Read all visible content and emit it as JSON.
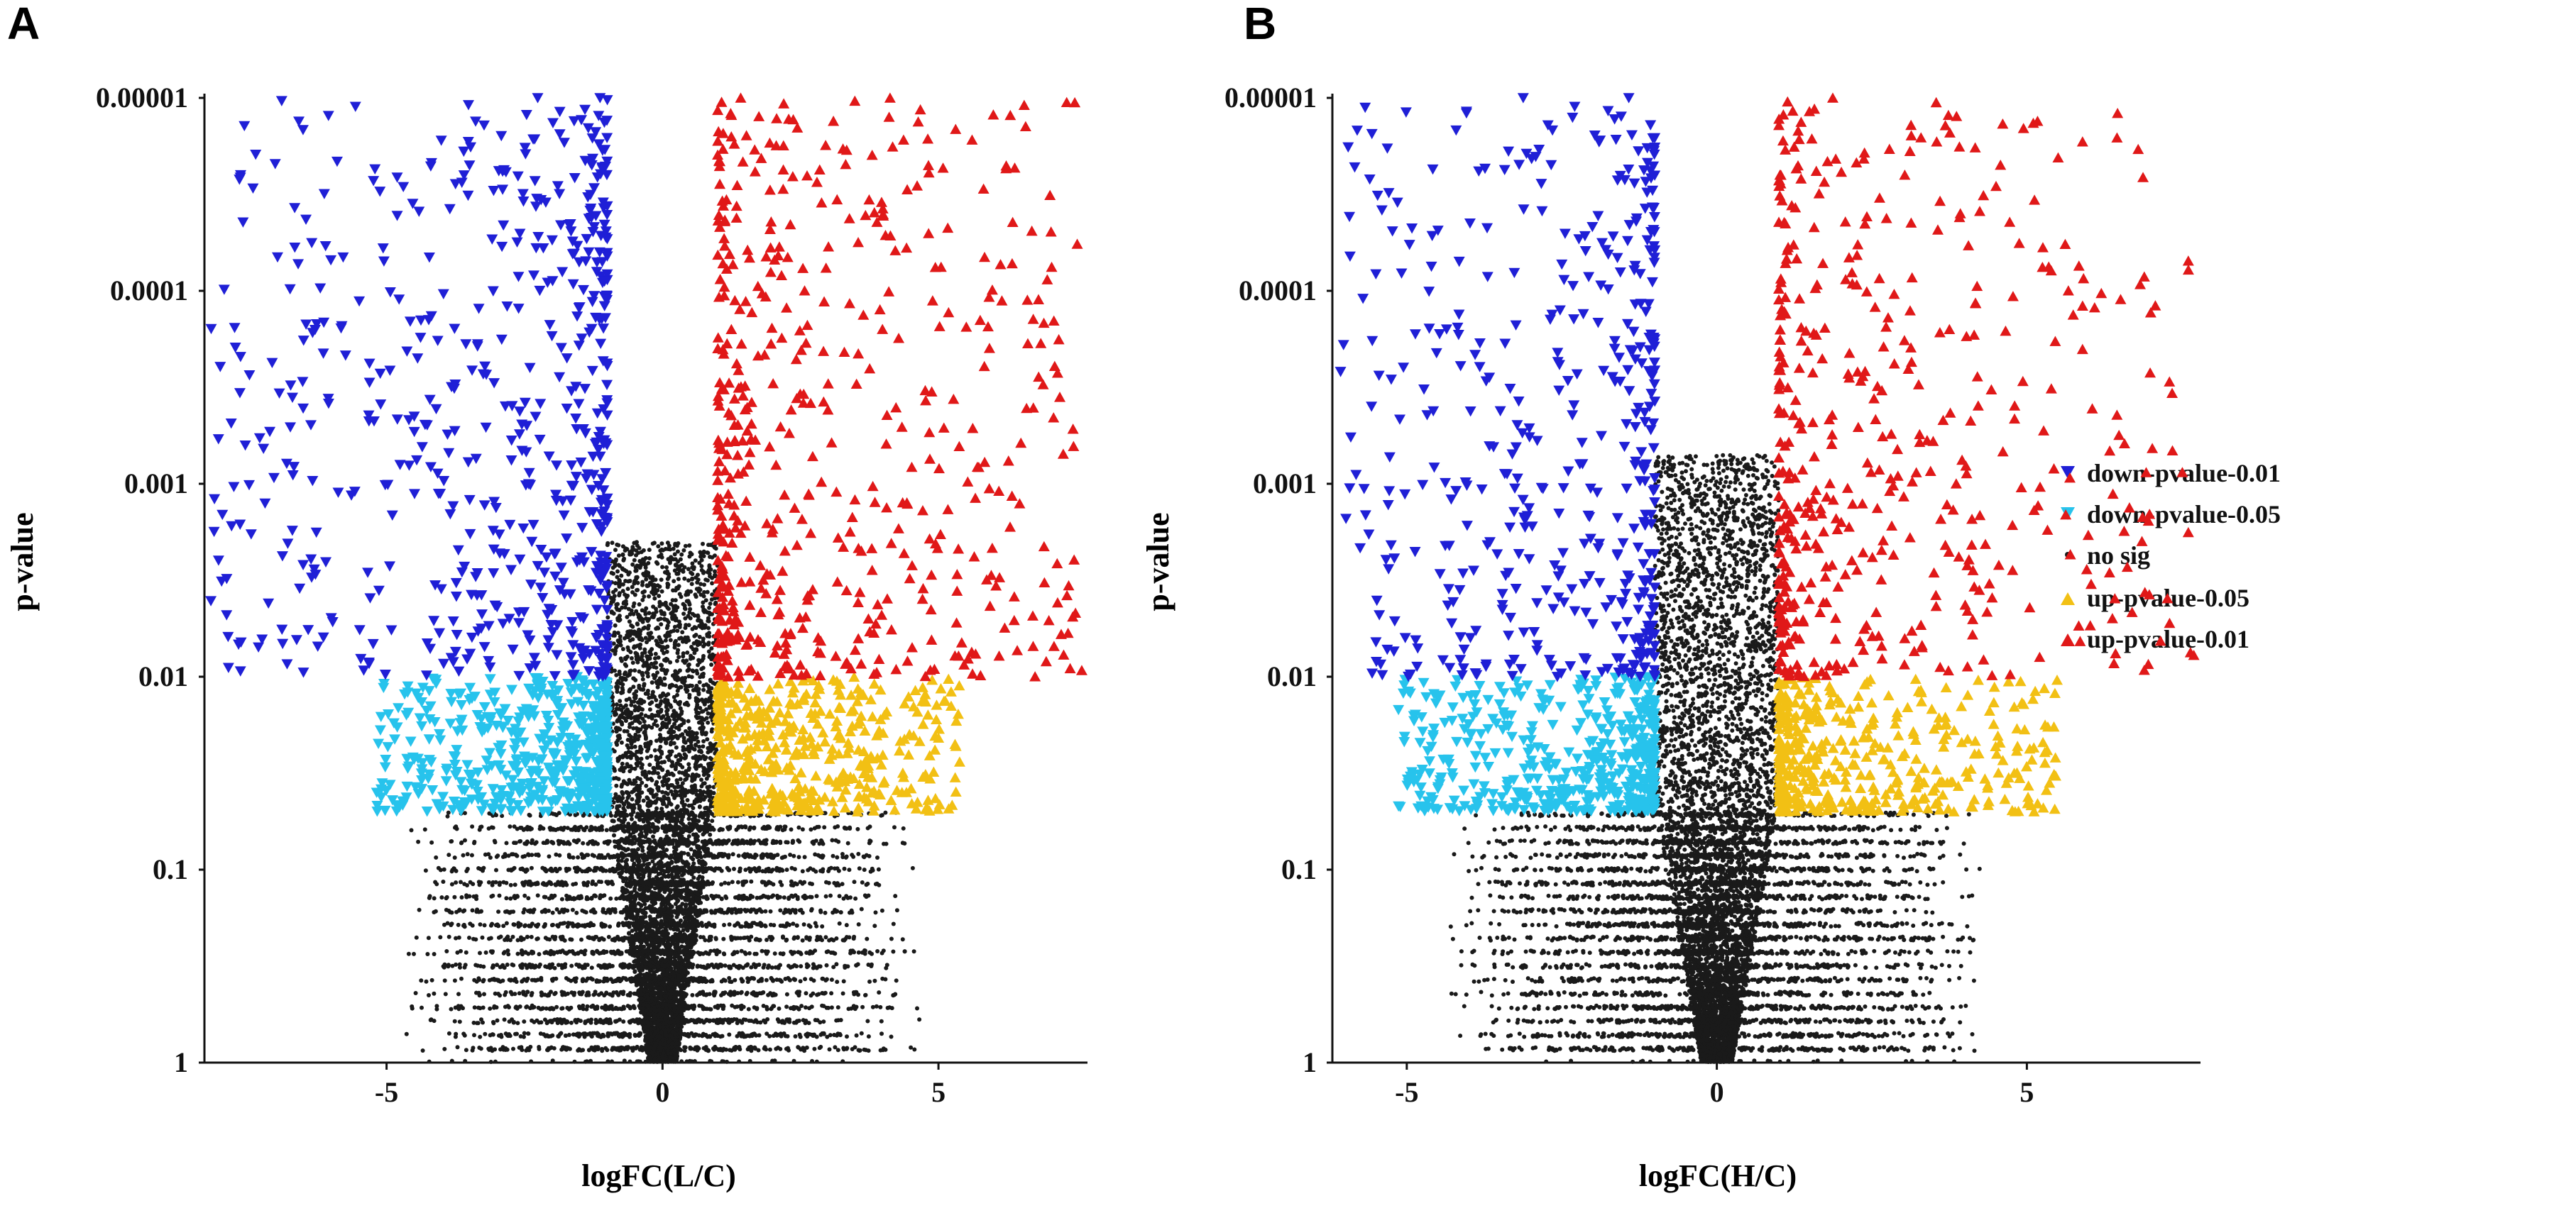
{
  "figure": {
    "panel_letters": [
      "A",
      "B"
    ]
  },
  "legend": {
    "items": [
      {
        "key": "down1",
        "label": "down-pvalue-0.01",
        "color": "#1f1fd6",
        "shape": "triangle-down"
      },
      {
        "key": "down5",
        "label": "down-pvalue-0.05",
        "color": "#27c3ec",
        "shape": "triangle-down"
      },
      {
        "key": "nosig",
        "label": "no sig",
        "color": "#1a1a1a",
        "shape": "dot"
      },
      {
        "key": "up5",
        "label": "up-pvalue-0.05",
        "color": "#f2c014",
        "shape": "triangle-up"
      },
      {
        "key": "up1",
        "label": "up-pvalue-0.01",
        "color": "#e01818",
        "shape": "triangle-up"
      }
    ]
  },
  "chart_data": [
    {
      "type": "scatter",
      "panel": "A",
      "title": "",
      "xlabel": "logFC(L/C)",
      "ylabel": "p-value",
      "xlim": [
        -8.3,
        7.7
      ],
      "y_scale": "log-reversed",
      "ylim": [
        1,
        1e-05
      ],
      "xticks": [
        -5,
        0,
        5
      ],
      "xtick_labels": [
        "-5",
        "0",
        "5"
      ],
      "yticks": [
        1,
        0.1,
        0.01,
        0.001,
        0.0001,
        1e-05
      ],
      "ytick_labels": [
        "1",
        "0.1",
        "0.01",
        "0.001",
        "0.0001",
        "0.00001"
      ],
      "thresholds": {
        "logfc": 1,
        "p_strong": 0.01,
        "p_weak": 0.05
      },
      "series": [
        {
          "name": "down-pvalue-0.01",
          "approx_count": 600,
          "x_range": [
            -8.2,
            -1.0
          ],
          "p_range": [
            0.01,
            1e-05
          ]
        },
        {
          "name": "down-pvalue-0.05",
          "approx_count": 550,
          "x_range": [
            -5.2,
            -1.0
          ],
          "p_range": [
            0.05,
            0.01
          ]
        },
        {
          "name": "no sig",
          "approx_count": 9000,
          "x_range": [
            -4.4,
            4.7
          ],
          "p_range": [
            1,
            0.002
          ]
        },
        {
          "name": "up-pvalue-0.05",
          "approx_count": 500,
          "x_range": [
            1.0,
            5.4
          ],
          "p_range": [
            0.05,
            0.01
          ]
        },
        {
          "name": "up-pvalue-0.01",
          "approx_count": 550,
          "x_range": [
            1.0,
            7.6
          ],
          "p_range": [
            0.01,
            1e-05
          ]
        }
      ]
    },
    {
      "type": "scatter",
      "panel": "B",
      "title": "",
      "xlabel": "logFC(H/C)",
      "ylabel": "p-value",
      "xlim": [
        -6.2,
        7.8
      ],
      "y_scale": "log-reversed",
      "ylim": [
        1,
        1e-05
      ],
      "xticks": [
        -5,
        0,
        5
      ],
      "xtick_labels": [
        "-5",
        "0",
        "5"
      ],
      "yticks": [
        1,
        0.1,
        0.01,
        0.001,
        0.0001,
        1e-05
      ],
      "ytick_labels": [
        "1",
        "0.1",
        "0.01",
        "0.001",
        "0.0001",
        "0.00001"
      ],
      "thresholds": {
        "logfc": 1,
        "p_strong": 0.01,
        "p_weak": 0.05
      },
      "series": [
        {
          "name": "down-pvalue-0.01",
          "approx_count": 450,
          "x_range": [
            -6.1,
            -1.0
          ],
          "p_range": [
            0.01,
            1e-05
          ]
        },
        {
          "name": "down-pvalue-0.05",
          "approx_count": 500,
          "x_range": [
            -5.2,
            -1.0
          ],
          "p_range": [
            0.05,
            0.01
          ]
        },
        {
          "name": "no sig",
          "approx_count": 9000,
          "x_range": [
            -4.4,
            4.4
          ],
          "p_range": [
            1,
            0.0007
          ]
        },
        {
          "name": "up-pvalue-0.05",
          "approx_count": 420,
          "x_range": [
            1.0,
            5.5
          ],
          "p_range": [
            0.05,
            0.01
          ]
        },
        {
          "name": "up-pvalue-0.01",
          "approx_count": 480,
          "x_range": [
            1.0,
            7.7
          ],
          "p_range": [
            0.01,
            1e-05
          ]
        }
      ]
    }
  ]
}
